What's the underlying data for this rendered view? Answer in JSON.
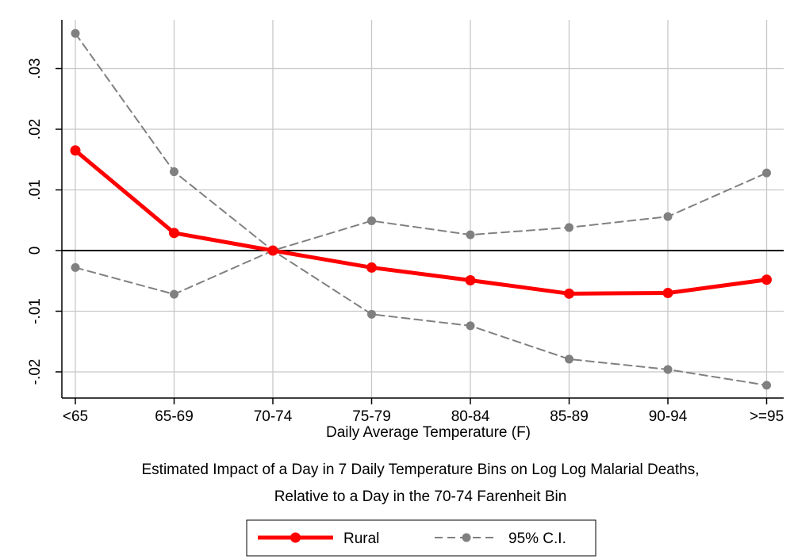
{
  "chart_data": {
    "type": "line",
    "title": "",
    "xlabel": "Daily Average Temperature (F)",
    "ylabel": "",
    "caption_lines": [
      "Estimated Impact of a Day in 7 Daily Temperature Bins on Log Log Malarial Deaths,",
      "Relative to a Day in the 70-74 Farenheit Bin"
    ],
    "categories": [
      "<65",
      "65-69",
      "70-74",
      "75-79",
      "80-84",
      "85-89",
      "90-94",
      ">=95"
    ],
    "ylim": [
      -0.023,
      0.0355
    ],
    "yticks": [
      -0.02,
      -0.01,
      0,
      0.01,
      0.02,
      0.03
    ],
    "ytick_labels": [
      "-.02",
      "-.01",
      "0",
      ".01",
      ".02",
      ".03"
    ],
    "grid": true,
    "legend_position": "bottom",
    "series": [
      {
        "name": "Rural",
        "color": "#ff0000",
        "style": "solid",
        "values": [
          0.0165,
          0.0029,
          0.0,
          -0.0028,
          -0.0049,
          -0.0071,
          -0.007,
          -0.0048
        ]
      },
      {
        "name": "95% C.I.",
        "color": "#808080",
        "style": "dashed",
        "values": [
          0.0358,
          0.013,
          0.0,
          -0.0105,
          -0.0124,
          -0.0179,
          -0.0196,
          -0.0222
        ]
      },
      {
        "name": "95% C.I.",
        "color": "#808080",
        "style": "dashed",
        "legend": false,
        "values": [
          -0.0028,
          -0.0072,
          0.0,
          0.0049,
          0.0026,
          0.0038,
          0.0056,
          0.0128
        ]
      }
    ],
    "zero_line_color": "#000000",
    "grid_color": "#c8c8c8"
  }
}
